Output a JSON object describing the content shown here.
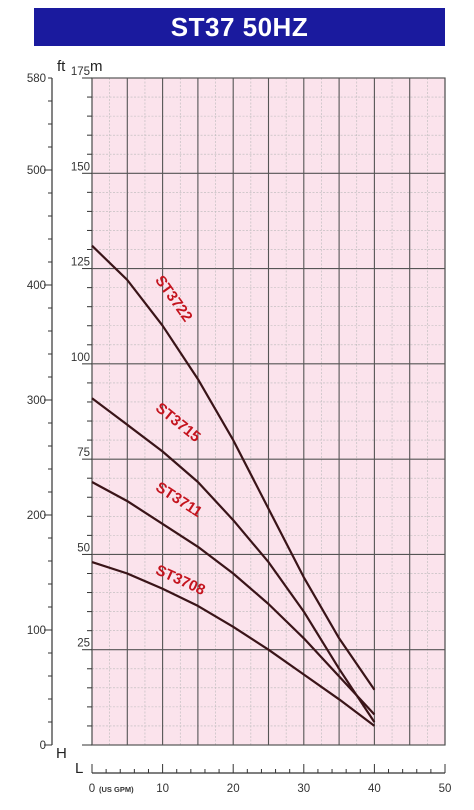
{
  "title": "ST37 50HZ",
  "colors": {
    "title_bg": "#1a1a9e",
    "title_text": "#ffffff",
    "plot_bg": "#fbe3ec",
    "grid_major": "#555555",
    "grid_minor": "#b9b9b9",
    "curve": "#3a1418",
    "curve_label": "#c4141e",
    "axis": "#333333"
  },
  "chart_data": {
    "type": "line",
    "title": "ST37 50HZ",
    "x_unit_label": "(US GPM)",
    "x_axis_letter": "L",
    "y_axis_letter": "H",
    "y_left_unit": "ft",
    "y_right_unit": "m",
    "xlim": [
      0,
      50
    ],
    "x_ticks": [
      0,
      10,
      20,
      30,
      40,
      50
    ],
    "ylim_ft": [
      0,
      580
    ],
    "ylim_m": [
      0,
      175
    ],
    "y_ticks_ft": [
      0,
      100,
      200,
      300,
      400,
      500,
      580
    ],
    "y_ticks_m": [
      25,
      50,
      75,
      100,
      125,
      150,
      175
    ],
    "grid": true,
    "series": [
      {
        "name": "ST3722",
        "points": [
          [
            0,
            131
          ],
          [
            5,
            122
          ],
          [
            10,
            110
          ],
          [
            15,
            96
          ],
          [
            20,
            80
          ],
          [
            25,
            62
          ],
          [
            30,
            44
          ],
          [
            35,
            28
          ],
          [
            40,
            14.5
          ]
        ],
        "label_at": [
          10,
          122
        ]
      },
      {
        "name": "ST3715",
        "points": [
          [
            0,
            91
          ],
          [
            5,
            84
          ],
          [
            10,
            77
          ],
          [
            15,
            69
          ],
          [
            20,
            59
          ],
          [
            25,
            48
          ],
          [
            30,
            35
          ],
          [
            35,
            20
          ],
          [
            40,
            6
          ]
        ],
        "label_at": [
          10,
          88
        ]
      },
      {
        "name": "ST3711",
        "points": [
          [
            0,
            69
          ],
          [
            5,
            64
          ],
          [
            10,
            58
          ],
          [
            15,
            52
          ],
          [
            20,
            45
          ],
          [
            25,
            37
          ],
          [
            30,
            28
          ],
          [
            35,
            18
          ],
          [
            40,
            8
          ]
        ],
        "label_at": [
          10,
          67
        ]
      },
      {
        "name": "ST3708",
        "points": [
          [
            0,
            48
          ],
          [
            5,
            45
          ],
          [
            10,
            41
          ],
          [
            15,
            36.5
          ],
          [
            20,
            31
          ],
          [
            25,
            25
          ],
          [
            30,
            18.5
          ],
          [
            35,
            12
          ],
          [
            40,
            5
          ]
        ],
        "label_at": [
          10,
          45
        ]
      }
    ]
  }
}
